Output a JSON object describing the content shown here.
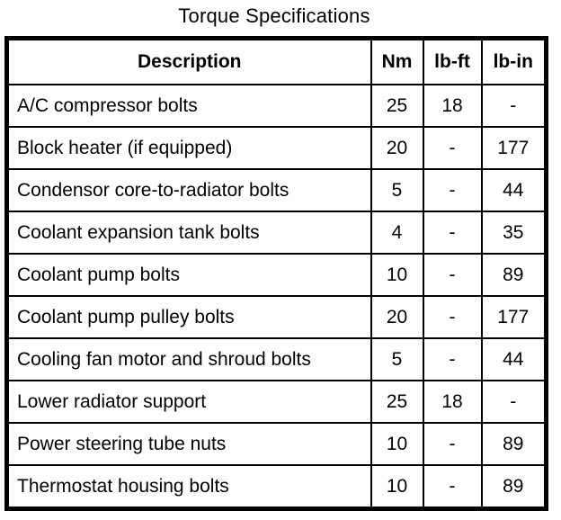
{
  "title": "Torque Specifications",
  "colors": {
    "text": "#000000",
    "border": "#000000",
    "background": "#ffffff"
  },
  "table": {
    "headers": [
      "Description",
      "Nm",
      "lb-ft",
      "lb-in"
    ],
    "rows": [
      {
        "description": "A/C compressor bolts",
        "nm": "25",
        "lb_ft": "18",
        "lb_in": "-"
      },
      {
        "description": "Block heater (if equipped)",
        "nm": "20",
        "lb_ft": "-",
        "lb_in": "177"
      },
      {
        "description": "Condensor core-to-radiator bolts",
        "nm": "5",
        "lb_ft": "-",
        "lb_in": "44"
      },
      {
        "description": "Coolant expansion tank bolts",
        "nm": "4",
        "lb_ft": "-",
        "lb_in": "35"
      },
      {
        "description": "Coolant pump bolts",
        "nm": "10",
        "lb_ft": "-",
        "lb_in": "89"
      },
      {
        "description": "Coolant pump pulley bolts",
        "nm": "20",
        "lb_ft": "-",
        "lb_in": "177"
      },
      {
        "description": "Cooling fan motor and shroud bolts",
        "nm": "5",
        "lb_ft": "-",
        "lb_in": "44"
      },
      {
        "description": "Lower radiator support",
        "nm": "25",
        "lb_ft": "18",
        "lb_in": "-"
      },
      {
        "description": "Power steering tube nuts",
        "nm": "10",
        "lb_ft": "-",
        "lb_in": "89"
      },
      {
        "description": "Thermostat housing bolts",
        "nm": "10",
        "lb_ft": "-",
        "lb_in": "89"
      }
    ]
  }
}
